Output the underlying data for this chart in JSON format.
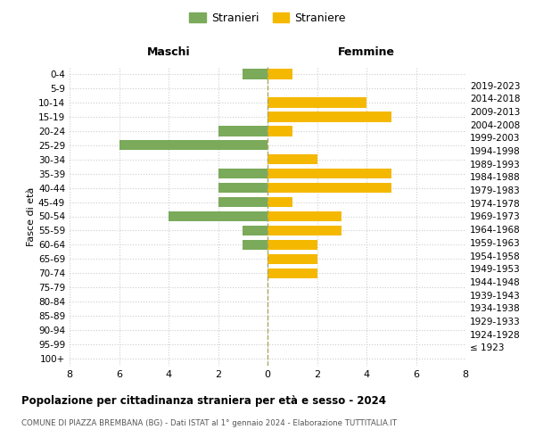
{
  "age_groups": [
    "100+",
    "95-99",
    "90-94",
    "85-89",
    "80-84",
    "75-79",
    "70-74",
    "65-69",
    "60-64",
    "55-59",
    "50-54",
    "45-49",
    "40-44",
    "35-39",
    "30-34",
    "25-29",
    "20-24",
    "15-19",
    "10-14",
    "5-9",
    "0-4"
  ],
  "birth_years": [
    "≤ 1923",
    "1924-1928",
    "1929-1933",
    "1934-1938",
    "1939-1943",
    "1944-1948",
    "1949-1953",
    "1954-1958",
    "1959-1963",
    "1964-1968",
    "1969-1973",
    "1974-1978",
    "1979-1983",
    "1984-1988",
    "1989-1993",
    "1994-1998",
    "1999-2003",
    "2004-2008",
    "2009-2013",
    "2014-2018",
    "2019-2023"
  ],
  "maschi": [
    0,
    0,
    0,
    0,
    0,
    0,
    0,
    0,
    1,
    1,
    4,
    2,
    2,
    2,
    0,
    6,
    2,
    0,
    0,
    0,
    1
  ],
  "femmine": [
    0,
    0,
    0,
    0,
    0,
    0,
    2,
    2,
    2,
    3,
    3,
    1,
    5,
    5,
    2,
    0,
    1,
    5,
    4,
    0,
    1
  ],
  "color_maschi": "#7aaa5a",
  "color_femmine": "#f5b800",
  "legend_maschi": "Stranieri",
  "legend_femmine": "Straniere",
  "title": "Popolazione per cittadinanza straniera per età e sesso - 2024",
  "subtitle": "COMUNE DI PIAZZA BREMBANA (BG) - Dati ISTAT al 1° gennaio 2024 - Elaborazione TUTTITALIA.IT",
  "ylabel_left": "Fasce di età",
  "xlabel_maschi": "Maschi",
  "xlabel_femmine": "Femmine",
  "xlim": 8,
  "background_color": "#ffffff",
  "grid_color": "#cccccc",
  "centerline_color": "#aaa860"
}
